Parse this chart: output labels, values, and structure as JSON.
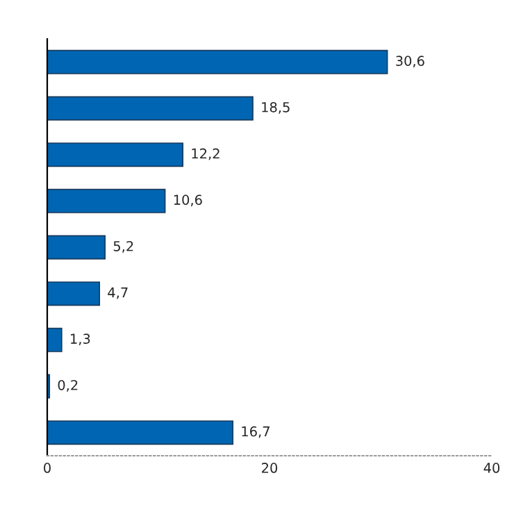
{
  "chart_data": {
    "type": "bar",
    "orientation": "horizontal",
    "categories": [
      null,
      null,
      null,
      null,
      null,
      null,
      null,
      null,
      null
    ],
    "values": [
      30.6,
      18.5,
      12.2,
      10.6,
      5.2,
      4.7,
      1.3,
      0.2,
      16.7
    ],
    "value_labels": [
      "30,6",
      "18,5",
      "12,2",
      "10,6",
      "5,2",
      "4,7",
      "1,3",
      "0,2",
      "16,7"
    ],
    "color": "#0066b3",
    "xlim": [
      0,
      40
    ],
    "xticks": [
      0,
      20,
      40
    ],
    "grid": false,
    "legend": false
  }
}
